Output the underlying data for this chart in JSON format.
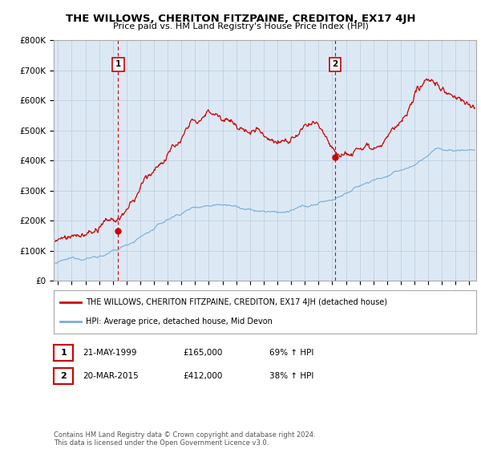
{
  "title": "THE WILLOWS, CHERITON FITZPAINE, CREDITON, EX17 4JH",
  "subtitle": "Price paid vs. HM Land Registry's House Price Index (HPI)",
  "ylim": [
    0,
    800000
  ],
  "yticks": [
    0,
    100000,
    200000,
    300000,
    400000,
    500000,
    600000,
    700000,
    800000
  ],
  "ytick_labels": [
    "£0",
    "£100K",
    "£200K",
    "£300K",
    "£400K",
    "£500K",
    "£600K",
    "£700K",
    "£800K"
  ],
  "xlim_start": 1994.7,
  "xlim_end": 2025.5,
  "xticks": [
    1995,
    1996,
    1997,
    1998,
    1999,
    2000,
    2001,
    2002,
    2003,
    2004,
    2005,
    2006,
    2007,
    2008,
    2009,
    2010,
    2011,
    2012,
    2013,
    2014,
    2015,
    2016,
    2017,
    2018,
    2019,
    2020,
    2021,
    2022,
    2023,
    2024,
    2025
  ],
  "property_color": "#cc0000",
  "hpi_color": "#7aadd4",
  "chart_bg": "#dce9f5",
  "vline_color": "#cc0000",
  "annotation_box_color": "#cc0000",
  "sale1_x": 1999.39,
  "sale1_y": 165000,
  "sale1_label": "1",
  "sale2_x": 2015.22,
  "sale2_y": 412000,
  "sale2_label": "2",
  "legend_property": "THE WILLOWS, CHERITON FITZPAINE, CREDITON, EX17 4JH (detached house)",
  "legend_hpi": "HPI: Average price, detached house, Mid Devon",
  "table_row1": [
    "1",
    "21-MAY-1999",
    "£165,000",
    "69% ↑ HPI"
  ],
  "table_row2": [
    "2",
    "20-MAR-2015",
    "£412,000",
    "38% ↑ HPI"
  ],
  "footnote": "Contains HM Land Registry data © Crown copyright and database right 2024.\nThis data is licensed under the Open Government Licence v3.0.",
  "background_color": "#ffffff",
  "grid_color": "#c0d0e0"
}
